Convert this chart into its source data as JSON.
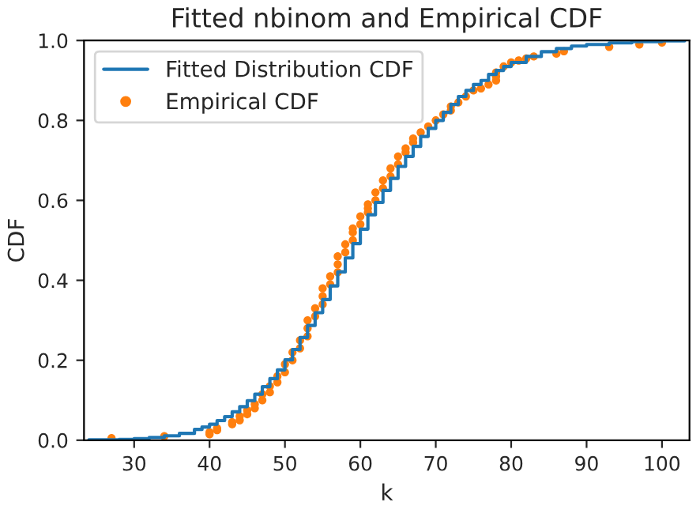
{
  "chart_data": {
    "type": "step",
    "title": "Fitted nbinom and Empirical CDF",
    "xlabel": "k",
    "ylabel": "CDF",
    "xlim": [
      23.35,
      103.65
    ],
    "xticks": [
      30,
      40,
      50,
      60,
      70,
      80,
      90,
      100
    ],
    "ylim": [
      0,
      1
    ],
    "yticks": [
      {
        "value": 0,
        "label": "0.0"
      },
      {
        "value": 0.2,
        "label": "0.2"
      },
      {
        "value": 0.4,
        "label": "0.4"
      },
      {
        "value": 0.6,
        "label": "0.6"
      },
      {
        "value": 0.8,
        "label": "0.8"
      },
      {
        "value": 1,
        "label": "1.0"
      }
    ],
    "grid": false,
    "legend": "top left",
    "series": [
      {
        "name": "Fitted Distribution CDF",
        "color": "#1f77b4",
        "marker": "none",
        "line_style": "solid",
        "x": [
          24,
          26,
          28,
          30,
          32,
          34,
          36,
          38,
          39,
          40,
          41,
          42,
          43,
          44,
          45,
          46,
          47,
          48,
          49,
          50,
          51,
          52,
          53,
          54,
          55,
          56,
          57,
          58,
          59,
          60,
          61,
          62,
          63,
          64,
          65,
          66,
          67,
          68,
          69,
          70,
          71,
          72,
          73,
          74,
          75,
          76,
          77,
          78,
          79,
          80,
          82,
          84,
          86,
          88,
          90,
          93,
          96,
          100,
          103
        ],
        "values": [
          0.001,
          0.001,
          0.002,
          0.004,
          0.007,
          0.011,
          0.017,
          0.027,
          0.033,
          0.04,
          0.049,
          0.059,
          0.071,
          0.084,
          0.099,
          0.115,
          0.134,
          0.154,
          0.176,
          0.201,
          0.227,
          0.257,
          0.287,
          0.319,
          0.352,
          0.386,
          0.421,
          0.456,
          0.492,
          0.528,
          0.564,
          0.595,
          0.625,
          0.655,
          0.685,
          0.71,
          0.735,
          0.76,
          0.78,
          0.8,
          0.82,
          0.84,
          0.86,
          0.875,
          0.89,
          0.9,
          0.915,
          0.925,
          0.935,
          0.945,
          0.96,
          0.972,
          0.98,
          0.986,
          0.99,
          0.994,
          0.997,
          0.999,
          1.0
        ]
      },
      {
        "name": "Empirical CDF",
        "type": "scatter",
        "color": "#ff7f0e",
        "marker": "circle",
        "x": [
          27,
          34,
          40,
          40,
          41,
          41,
          43,
          43,
          44,
          44,
          45,
          45,
          46,
          46,
          47,
          47,
          48,
          48,
          49,
          49,
          50,
          50,
          51,
          51,
          52,
          52,
          53,
          53,
          53,
          54,
          54,
          55,
          55,
          55,
          56,
          56,
          57,
          57,
          57,
          58,
          58,
          59,
          59,
          59,
          60,
          60,
          61,
          61,
          61,
          62,
          62,
          63,
          63,
          64,
          64,
          65,
          65,
          66,
          66,
          67,
          67,
          68,
          69,
          70,
          71,
          72,
          72,
          73,
          74,
          75,
          76,
          77,
          78,
          78,
          78,
          79,
          80,
          81,
          82,
          83,
          86,
          87,
          93,
          97,
          100
        ],
        "values": [
          0.005,
          0.01,
          0.015,
          0.02,
          0.025,
          0.03,
          0.04,
          0.045,
          0.05,
          0.06,
          0.065,
          0.075,
          0.08,
          0.09,
          0.1,
          0.115,
          0.12,
          0.135,
          0.145,
          0.16,
          0.17,
          0.19,
          0.2,
          0.22,
          0.23,
          0.25,
          0.26,
          0.28,
          0.3,
          0.31,
          0.33,
          0.34,
          0.36,
          0.38,
          0.39,
          0.41,
          0.42,
          0.44,
          0.46,
          0.47,
          0.49,
          0.5,
          0.52,
          0.53,
          0.54,
          0.56,
          0.57,
          0.58,
          0.59,
          0.6,
          0.62,
          0.63,
          0.65,
          0.66,
          0.68,
          0.69,
          0.71,
          0.72,
          0.73,
          0.745,
          0.755,
          0.77,
          0.785,
          0.8,
          0.815,
          0.825,
          0.835,
          0.845,
          0.86,
          0.875,
          0.88,
          0.89,
          0.9,
          0.91,
          0.92,
          0.935,
          0.945,
          0.95,
          0.955,
          0.96,
          0.967,
          0.973,
          0.984,
          0.99,
          0.995
        ]
      }
    ]
  }
}
